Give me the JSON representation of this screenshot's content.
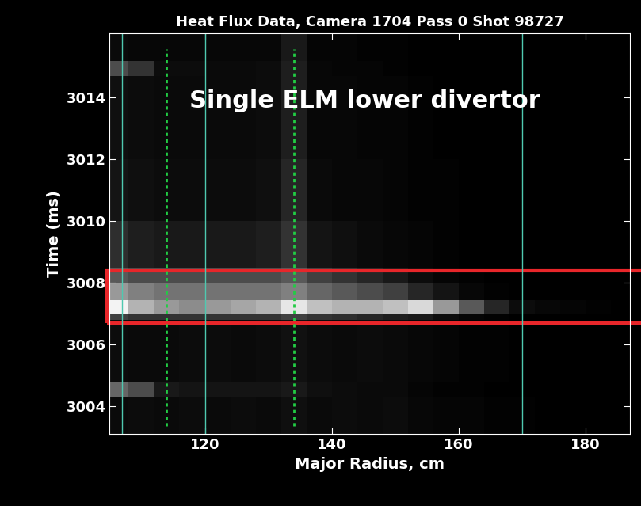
{
  "chart_data": {
    "type": "heatmap",
    "title": "Heat Flux Data, Camera 1704 Pass 0 Shot 98727",
    "annotation": "Single ELM lower divertor",
    "x_label": "Major Radius, cm",
    "y_label": "Time (ms)",
    "xlim": [
      105,
      187
    ],
    "ylim": [
      3003.1,
      3016.1
    ],
    "xticks": [
      120,
      140,
      160,
      180
    ],
    "yticks": [
      3004,
      3006,
      3008,
      3010,
      3012,
      3014
    ],
    "grid": false,
    "x_edges": [
      104,
      108,
      112,
      116,
      120,
      124,
      128,
      132,
      136,
      140,
      144,
      148,
      152,
      156,
      160,
      164,
      168,
      172,
      176,
      180,
      184,
      188
    ],
    "y_edges": [
      3003,
      3004.3,
      3004.8,
      3006.8,
      3007.0,
      3007.45,
      3008.0,
      3008.5,
      3010,
      3012,
      3014.7,
      3015.2,
      3016.2
    ],
    "color_range": [
      0,
      1
    ],
    "cells": [
      [
        0.04,
        0.05,
        0.04,
        0.05,
        0.04,
        0.05,
        0.04,
        0.06,
        0.04,
        0.05,
        0.04,
        0.05,
        0.03,
        0.02,
        0.02,
        0.01,
        0.01,
        0,
        0,
        0,
        0
      ],
      [
        0.4,
        0.3,
        0.1,
        0.08,
        0.08,
        0.08,
        0.08,
        0.1,
        0.06,
        0.05,
        0.04,
        0.04,
        0.02,
        0.01,
        0.01,
        0,
        0,
        0,
        0,
        0,
        0
      ],
      [
        0.05,
        0.04,
        0.04,
        0.05,
        0.05,
        0.04,
        0.05,
        0.07,
        0.05,
        0.04,
        0.05,
        0.04,
        0.03,
        0.02,
        0.01,
        0.01,
        0,
        0,
        0,
        0,
        0
      ],
      [
        0.25,
        0.2,
        0.2,
        0.2,
        0.2,
        0.2,
        0.2,
        0.25,
        0.2,
        0.18,
        0.15,
        0.12,
        0.1,
        0.05,
        0.02,
        0.01,
        0,
        0,
        0,
        0,
        0
      ],
      [
        0.95,
        0.7,
        0.6,
        0.55,
        0.6,
        0.65,
        0.7,
        0.9,
        0.75,
        0.7,
        0.7,
        0.75,
        0.85,
        0.6,
        0.35,
        0.15,
        0.05,
        0.03,
        0.02,
        0.01,
        0
      ],
      [
        0.6,
        0.5,
        0.45,
        0.45,
        0.45,
        0.45,
        0.45,
        0.5,
        0.4,
        0.35,
        0.3,
        0.25,
        0.15,
        0.08,
        0.03,
        0.01,
        0,
        0,
        0,
        0,
        0
      ],
      [
        0.35,
        0.3,
        0.3,
        0.3,
        0.3,
        0.3,
        0.3,
        0.35,
        0.25,
        0.2,
        0.15,
        0.1,
        0.05,
        0.02,
        0.01,
        0,
        0,
        0,
        0,
        0,
        0
      ],
      [
        0.18,
        0.12,
        0.1,
        0.1,
        0.1,
        0.1,
        0.12,
        0.2,
        0.08,
        0.06,
        0.04,
        0.03,
        0.02,
        0.01,
        0,
        0,
        0,
        0,
        0,
        0,
        0
      ],
      [
        0.08,
        0.06,
        0.05,
        0.05,
        0.05,
        0.05,
        0.06,
        0.15,
        0.04,
        0.03,
        0.03,
        0.02,
        0.01,
        0.01,
        0,
        0,
        0,
        0,
        0,
        0,
        0
      ],
      [
        0.06,
        0.05,
        0.04,
        0.04,
        0.04,
        0.04,
        0.05,
        0.12,
        0.03,
        0.03,
        0.02,
        0.02,
        0.01,
        0,
        0,
        0,
        0,
        0,
        0,
        0,
        0
      ],
      [
        0.3,
        0.2,
        0.05,
        0.05,
        0.04,
        0.04,
        0.05,
        0.12,
        0.03,
        0.02,
        0.02,
        0.01,
        0,
        0,
        0,
        0,
        0,
        0,
        0,
        0,
        0
      ],
      [
        0.04,
        0.03,
        0.03,
        0.03,
        0.03,
        0.03,
        0.03,
        0.1,
        0.02,
        0.02,
        0.01,
        0.01,
        0,
        0,
        0,
        0,
        0,
        0,
        0,
        0,
        0
      ]
    ],
    "solid_lines_x": [
      107,
      120,
      170
    ],
    "dotted_lines_x": [
      114,
      134
    ],
    "highlight_time": [
      3006.7,
      3008.4
    ]
  }
}
